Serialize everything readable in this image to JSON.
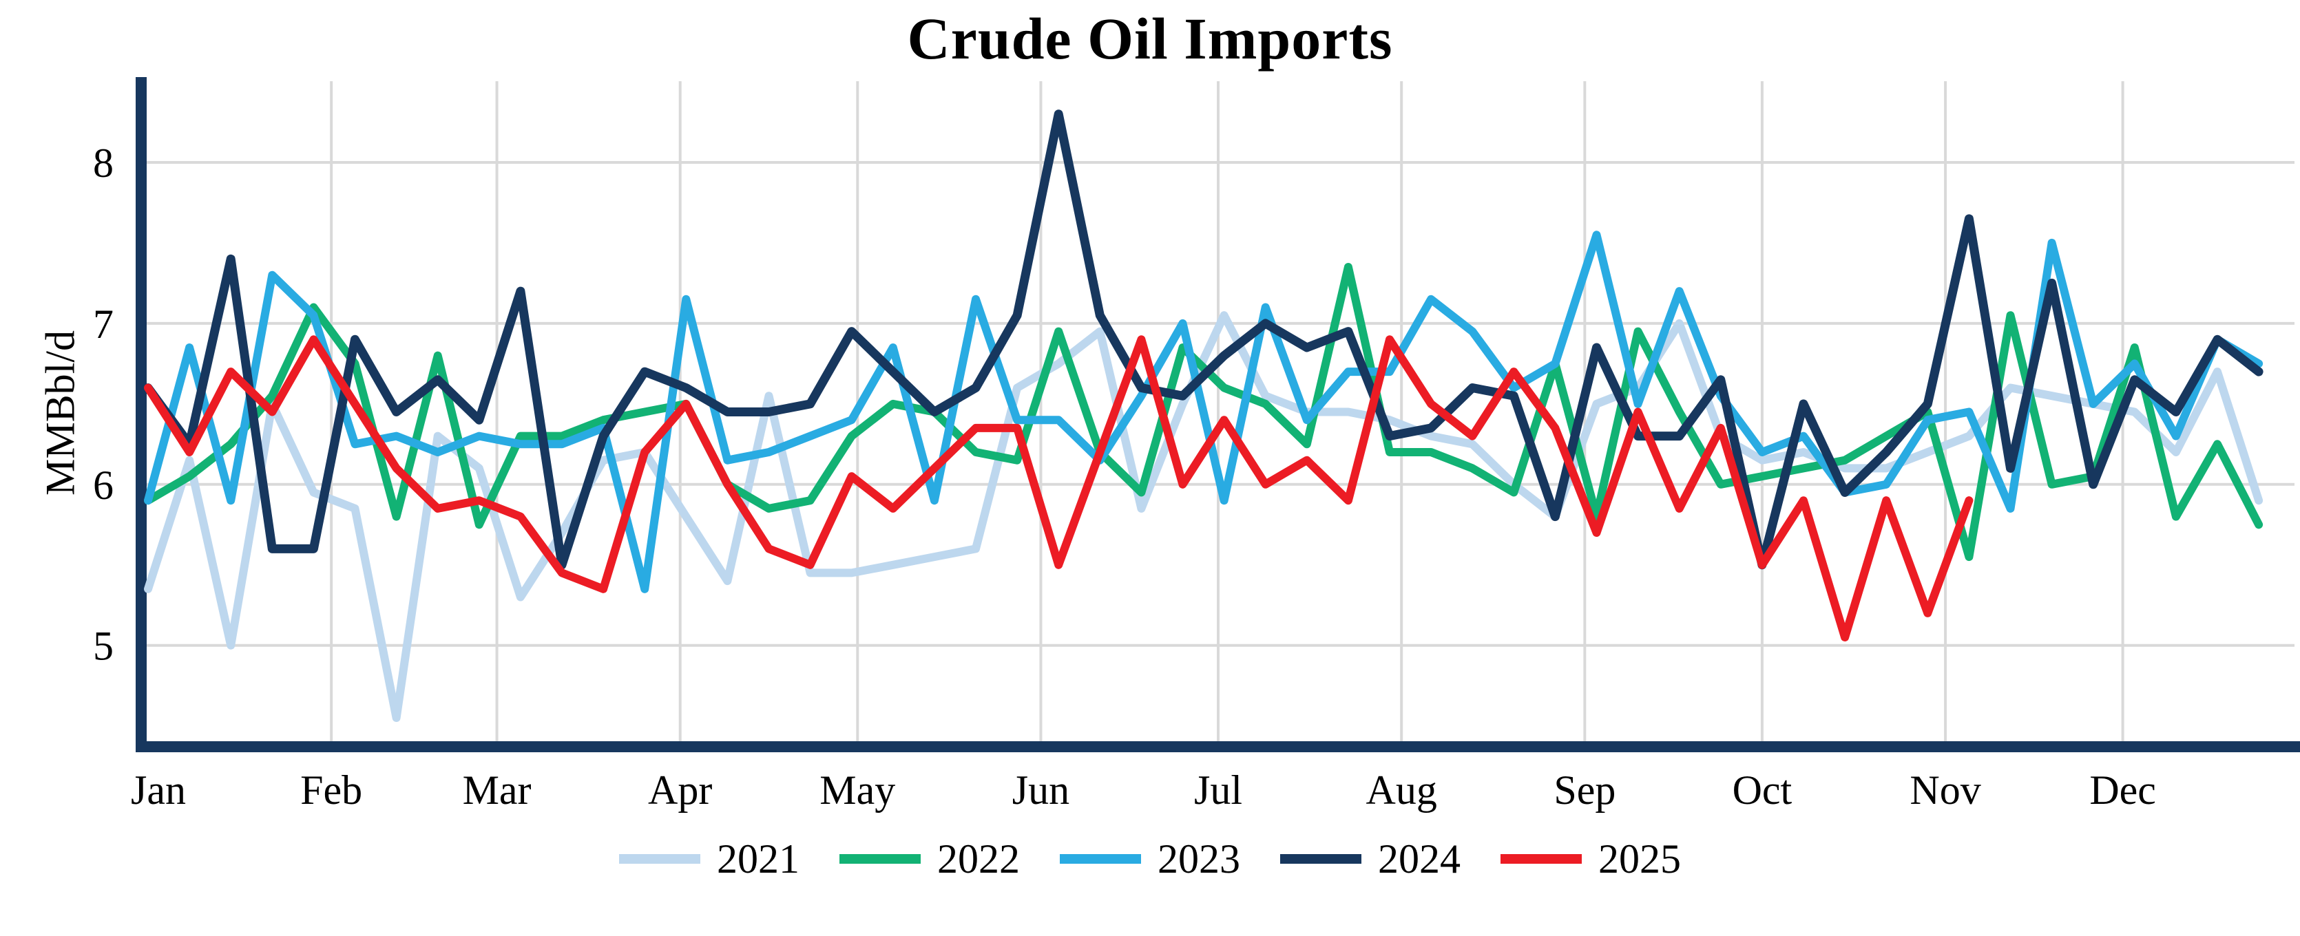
{
  "chart_data": {
    "type": "line",
    "title": "Crude Oil Imports",
    "xlabel": "",
    "ylabel": "MMBbl/d",
    "x_unit": "week-of-year",
    "x_tick_labels": [
      "Jan",
      "Feb",
      "Mar",
      "Apr",
      "May",
      "Jun",
      "Jul",
      "Aug",
      "Sep",
      "Oct",
      "Nov",
      "Dec"
    ],
    "yticks": [
      5,
      6,
      7,
      8
    ],
    "ylim": [
      4.37,
      8.5
    ],
    "grid": true,
    "legend_position": "bottom",
    "axis_color": "#17375E",
    "grid_color": "#D9D9D9",
    "series": [
      {
        "name": "2021",
        "color": "#BDD7EE",
        "values": [
          5.35,
          6.15,
          5.0,
          6.5,
          5.95,
          5.85,
          4.55,
          6.3,
          6.1,
          5.3,
          5.7,
          6.15,
          6.2,
          5.8,
          5.4,
          6.55,
          5.45,
          5.45,
          5.5,
          5.55,
          5.6,
          6.6,
          6.75,
          6.95,
          5.85,
          6.5,
          7.05,
          6.55,
          6.45,
          6.45,
          6.4,
          6.3,
          6.25,
          6.0,
          5.8,
          6.5,
          6.6,
          7.0,
          6.3,
          6.15,
          6.2,
          6.1,
          6.1,
          6.2,
          6.3,
          6.6,
          6.55,
          6.5,
          6.45,
          6.2,
          6.7,
          5.9
        ]
      },
      {
        "name": "2022",
        "color": "#12B274",
        "values": [
          5.9,
          6.05,
          6.25,
          6.55,
          7.1,
          6.75,
          5.8,
          6.8,
          5.75,
          6.3,
          6.3,
          6.4,
          6.45,
          6.5,
          6.0,
          5.85,
          5.9,
          6.3,
          6.5,
          6.45,
          6.2,
          6.15,
          6.95,
          6.2,
          5.95,
          6.85,
          6.6,
          6.5,
          6.25,
          7.35,
          6.2,
          6.2,
          6.1,
          5.95,
          6.75,
          5.8,
          6.95,
          6.45,
          6.0,
          6.05,
          6.1,
          6.15,
          6.3,
          6.45,
          5.55,
          7.05,
          6.0,
          6.05,
          6.85,
          5.8,
          6.25,
          5.75
        ]
      },
      {
        "name": "2023",
        "color": "#29ABE2",
        "values": [
          5.9,
          6.85,
          5.9,
          7.3,
          7.05,
          6.25,
          6.3,
          6.2,
          6.3,
          6.25,
          6.25,
          6.35,
          5.35,
          7.15,
          6.15,
          6.2,
          6.3,
          6.4,
          6.85,
          5.9,
          7.15,
          6.4,
          6.4,
          6.15,
          6.55,
          7.0,
          5.9,
          7.1,
          6.4,
          6.7,
          6.7,
          7.15,
          6.95,
          6.6,
          6.75,
          7.55,
          6.5,
          7.2,
          6.55,
          6.2,
          6.3,
          5.95,
          6.0,
          6.4,
          6.45,
          5.85,
          7.5,
          6.5,
          6.75,
          6.3,
          6.9,
          6.75
        ]
      },
      {
        "name": "2024",
        "color": "#17375E",
        "values": [
          6.6,
          6.25,
          7.4,
          5.6,
          5.6,
          6.9,
          6.45,
          6.65,
          6.4,
          7.2,
          5.5,
          6.3,
          6.7,
          6.6,
          6.45,
          6.45,
          6.5,
          6.95,
          6.7,
          6.45,
          6.6,
          7.05,
          8.3,
          7.05,
          6.6,
          6.55,
          6.8,
          7.0,
          6.85,
          6.95,
          6.3,
          6.35,
          6.6,
          6.55,
          5.8,
          6.85,
          6.3,
          6.3,
          6.65,
          5.5,
          6.5,
          5.95,
          6.2,
          6.5,
          7.65,
          6.1,
          7.25,
          6.0,
          6.65,
          6.45,
          6.9,
          6.7
        ]
      },
      {
        "name": "2025",
        "color": "#EC1C24",
        "values": [
          6.6,
          6.2,
          6.7,
          6.45,
          6.9,
          6.5,
          6.1,
          5.85,
          5.9,
          5.8,
          5.45,
          5.35,
          6.2,
          6.5,
          6.0,
          5.6,
          5.5,
          6.05,
          5.85,
          6.1,
          6.35,
          6.35,
          5.5,
          6.2,
          6.9,
          6.0,
          6.4,
          6.0,
          6.15,
          5.9,
          6.9,
          6.5,
          6.3,
          6.7,
          6.35,
          5.7,
          6.45,
          5.85,
          6.35,
          5.5,
          5.9,
          5.05,
          5.9,
          5.2,
          5.9
        ]
      }
    ]
  }
}
